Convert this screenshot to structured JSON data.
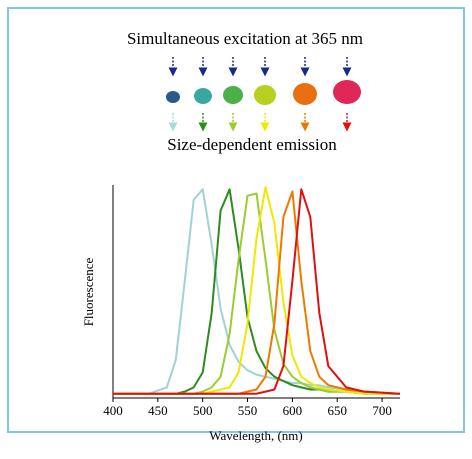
{
  "diagram": {
    "top_label": "Simultaneous excitation at 365 nm",
    "bottom_label": "Size-dependent emission"
  },
  "chart_data": {
    "type": "line",
    "xlabel": "Wavelength, (nm)",
    "ylabel": "Fluorescence",
    "x": [
      400,
      440,
      460,
      470,
      480,
      490,
      500,
      510,
      520,
      530,
      540,
      550,
      560,
      570,
      580,
      590,
      600,
      610,
      620,
      630,
      640,
      660,
      680,
      720
    ],
    "xlim": [
      400,
      720
    ],
    "xticks": [
      400,
      450,
      500,
      550,
      600,
      650,
      700
    ],
    "ylim": [
      0,
      1
    ],
    "series": [
      {
        "color": "#9fd3d3",
        "values": [
          0.02,
          0.02,
          0.05,
          0.18,
          0.55,
          0.93,
          0.98,
          0.72,
          0.42,
          0.25,
          0.17,
          0.13,
          0.11,
          0.1,
          0.09,
          0.08,
          0.07,
          0.07,
          0.06,
          0.06,
          0.05,
          0.04,
          0.03,
          0.02
        ]
      },
      {
        "color": "#2e8b1e",
        "values": [
          0.02,
          0.02,
          0.02,
          0.02,
          0.03,
          0.05,
          0.12,
          0.4,
          0.88,
          0.98,
          0.7,
          0.38,
          0.22,
          0.14,
          0.1,
          0.08,
          0.06,
          0.05,
          0.04,
          0.04,
          0.03,
          0.03,
          0.02,
          0.02
        ]
      },
      {
        "color": "#9acd32",
        "values": [
          0.02,
          0.02,
          0.02,
          0.02,
          0.02,
          0.02,
          0.03,
          0.05,
          0.1,
          0.3,
          0.65,
          0.95,
          0.96,
          0.65,
          0.32,
          0.16,
          0.1,
          0.07,
          0.05,
          0.04,
          0.03,
          0.03,
          0.02,
          0.02
        ]
      },
      {
        "color": "#f0e800",
        "values": [
          0.02,
          0.02,
          0.02,
          0.02,
          0.02,
          0.02,
          0.02,
          0.03,
          0.04,
          0.05,
          0.12,
          0.35,
          0.75,
          0.99,
          0.82,
          0.45,
          0.2,
          0.1,
          0.07,
          0.05,
          0.04,
          0.03,
          0.02,
          0.02
        ]
      },
      {
        "color": "#f07800",
        "values": [
          0.02,
          0.02,
          0.02,
          0.02,
          0.02,
          0.02,
          0.02,
          0.02,
          0.02,
          0.02,
          0.02,
          0.03,
          0.04,
          0.1,
          0.35,
          0.85,
          0.97,
          0.55,
          0.22,
          0.1,
          0.06,
          0.04,
          0.03,
          0.02
        ]
      },
      {
        "color": "#e01010",
        "values": [
          0.02,
          0.02,
          0.02,
          0.02,
          0.02,
          0.02,
          0.02,
          0.02,
          0.02,
          0.02,
          0.02,
          0.02,
          0.02,
          0.03,
          0.04,
          0.15,
          0.55,
          0.98,
          0.85,
          0.4,
          0.15,
          0.05,
          0.03,
          0.02
        ]
      }
    ]
  }
}
